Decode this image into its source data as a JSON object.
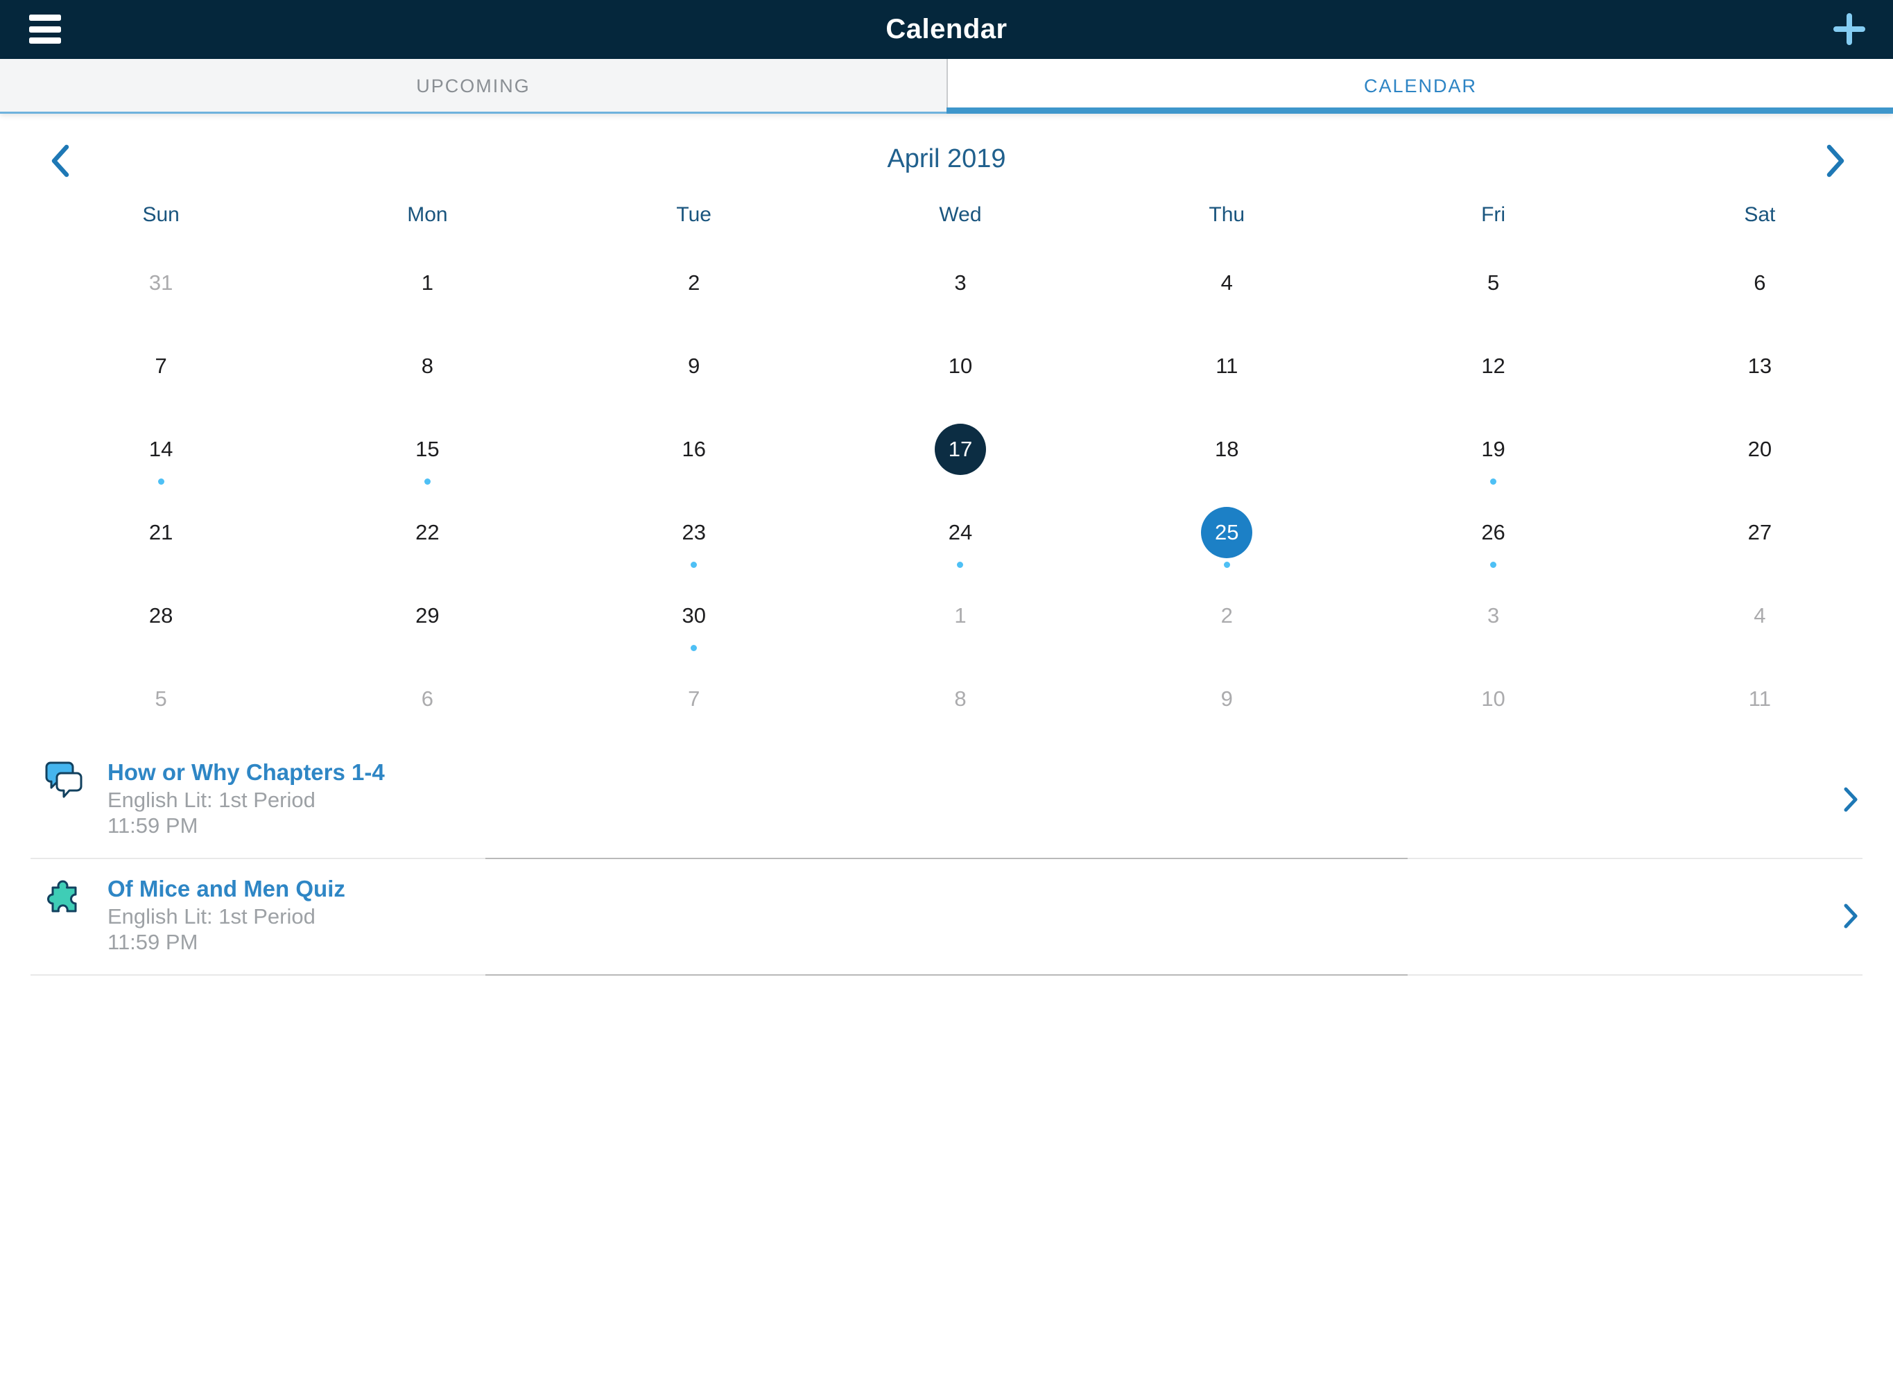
{
  "topbar": {
    "title": "Calendar",
    "bg_color": "#05273C",
    "menu_icon": "hamburger-icon",
    "add_icon": "plus-icon",
    "add_icon_color": "#85CDF3"
  },
  "tabs": {
    "upcoming_label": "UPCOMING",
    "calendar_label": "CALENDAR",
    "active_tab": "CALENDAR",
    "active_color": "#2D84C4",
    "inactive_color": "#8A8F94",
    "active_underline_color": "#3E96CB"
  },
  "month_nav": {
    "label": "April 2019",
    "prev_icon": "chevron-left-icon",
    "next_icon": "chevron-right-icon"
  },
  "calendar": {
    "day_headers": [
      "Sun",
      "Mon",
      "Tue",
      "Wed",
      "Thu",
      "Fri",
      "Sat"
    ],
    "today": "17",
    "selected_day": "25",
    "dot_color": "#4EC0F5",
    "today_circle_color": "#0C2D43",
    "selected_circle_color": "#1C80C6",
    "weeks": [
      [
        {
          "d": "31",
          "muted": true
        },
        {
          "d": "1"
        },
        {
          "d": "2"
        },
        {
          "d": "3"
        },
        {
          "d": "4"
        },
        {
          "d": "5"
        },
        {
          "d": "6"
        }
      ],
      [
        {
          "d": "7"
        },
        {
          "d": "8"
        },
        {
          "d": "9"
        },
        {
          "d": "10"
        },
        {
          "d": "11"
        },
        {
          "d": "12"
        },
        {
          "d": "13"
        }
      ],
      [
        {
          "d": "14",
          "dot": true
        },
        {
          "d": "15",
          "dot": true
        },
        {
          "d": "16"
        },
        {
          "d": "17",
          "circle": "today"
        },
        {
          "d": "18"
        },
        {
          "d": "19",
          "dot": true
        },
        {
          "d": "20"
        }
      ],
      [
        {
          "d": "21"
        },
        {
          "d": "22"
        },
        {
          "d": "23",
          "dot": true
        },
        {
          "d": "24",
          "dot": true
        },
        {
          "d": "25",
          "circle": "selected",
          "dot": true
        },
        {
          "d": "26",
          "dot": true
        },
        {
          "d": "27"
        }
      ],
      [
        {
          "d": "28"
        },
        {
          "d": "29"
        },
        {
          "d": "30",
          "dot": true
        },
        {
          "d": "1",
          "muted": true
        },
        {
          "d": "2",
          "muted": true
        },
        {
          "d": "3",
          "muted": true
        },
        {
          "d": "4",
          "muted": true
        }
      ],
      [
        {
          "d": "5",
          "muted": true
        },
        {
          "d": "6",
          "muted": true
        },
        {
          "d": "7",
          "muted": true
        },
        {
          "d": "8",
          "muted": true
        },
        {
          "d": "9",
          "muted": true
        },
        {
          "d": "10",
          "muted": true
        },
        {
          "d": "11",
          "muted": true
        }
      ]
    ]
  },
  "events": [
    {
      "icon": "discussion-icon",
      "title": "How or Why Chapters 1-4",
      "course": "English Lit: 1st Period",
      "time": "11:59 PM"
    },
    {
      "icon": "quiz-icon",
      "title": "Of Mice and Men Quiz",
      "course": "English Lit: 1st Period",
      "time": "11:59 PM"
    }
  ]
}
